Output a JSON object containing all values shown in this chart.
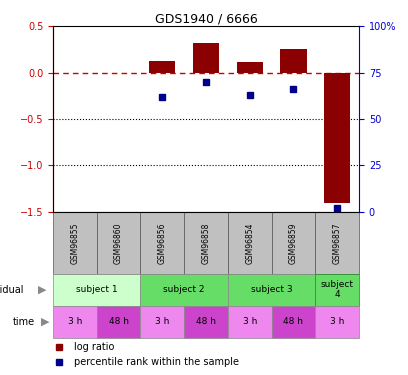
{
  "title": "GDS1940 / 6666",
  "samples": [
    "GSM96855",
    "GSM96860",
    "GSM96856",
    "GSM96858",
    "GSM96854",
    "GSM96859",
    "GSM96857"
  ],
  "log_ratio": [
    0.0,
    0.0,
    0.13,
    0.32,
    0.11,
    0.25,
    -1.4
  ],
  "percentile_rank": [
    null,
    null,
    62,
    70,
    63,
    66,
    2
  ],
  "ylim_left": [
    -1.5,
    0.5
  ],
  "ylim_right": [
    0,
    100
  ],
  "bar_color": "#8b0000",
  "dot_color": "#00008b",
  "dashed_line_color": "#cc0000",
  "dotted_line_color": "#000000",
  "left_axis_color": "#cc0000",
  "right_axis_color": "#0000cc",
  "sample_box_color": "#c0c0c0",
  "indiv_data": [
    {
      "label": "subject 1",
      "start": 0,
      "end": 2,
      "color": "#ccffcc",
      "edgecolor": "#888888"
    },
    {
      "label": "subject 2",
      "start": 2,
      "end": 4,
      "color": "#66dd66",
      "edgecolor": "#888888"
    },
    {
      "label": "subject 3",
      "start": 4,
      "end": 6,
      "color": "#66dd66",
      "edgecolor": "#888888"
    },
    {
      "label": "subject\n4",
      "start": 6,
      "end": 7,
      "color": "#66dd66",
      "edgecolor": "#228822"
    }
  ],
  "time_data": [
    {
      "label": "3 h",
      "color": "#ee88ee"
    },
    {
      "label": "48 h",
      "color": "#cc44cc"
    },
    {
      "label": "3 h",
      "color": "#ee88ee"
    },
    {
      "label": "48 h",
      "color": "#cc44cc"
    },
    {
      "label": "3 h",
      "color": "#ee88ee"
    },
    {
      "label": "48 h",
      "color": "#cc44cc"
    },
    {
      "label": "3 h",
      "color": "#ee88ee"
    }
  ]
}
